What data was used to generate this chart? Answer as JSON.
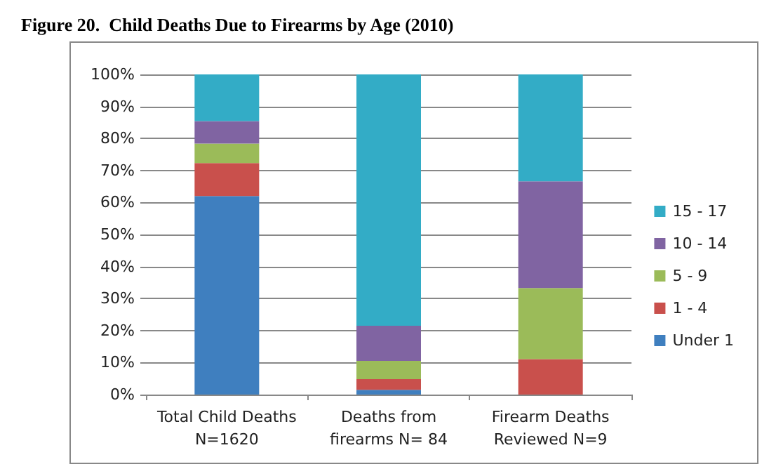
{
  "chart_data": {
    "type": "bar",
    "title": "Figure 20.  Child Deaths Due to Firearms by Age (2010)",
    "stacked": true,
    "categories": [
      "Total Child Deaths\nN=1620",
      "Deaths from\nfirearms N= 84",
      "Firearm Deaths\nReviewed N=9"
    ],
    "series": [
      {
        "name": "Under 1",
        "color": "#3f7fbf",
        "values": [
          62,
          1.5,
          0
        ]
      },
      {
        "name": "1 - 4",
        "color": "#c9504c",
        "values": [
          10.3,
          3.3,
          11.1
        ]
      },
      {
        "name": "5 - 9",
        "color": "#9bbb59",
        "values": [
          6.1,
          5.7,
          22.2
        ]
      },
      {
        "name": "10 - 14",
        "color": "#8064a2",
        "values": [
          7,
          11,
          33.3
        ]
      },
      {
        "name": "15 - 17",
        "color": "#33acc6",
        "values": [
          14.6,
          78.5,
          33.4
        ]
      }
    ],
    "ylim": [
      0,
      100
    ],
    "yticks": [
      {
        "value": 0,
        "label": "0%"
      },
      {
        "value": 10,
        "label": "10%"
      },
      {
        "value": 20,
        "label": "20%"
      },
      {
        "value": 30,
        "label": "30%"
      },
      {
        "value": 40,
        "label": "40%"
      },
      {
        "value": 50,
        "label": "50%"
      },
      {
        "value": 60,
        "label": "60%"
      },
      {
        "value": 70,
        "label": "70%"
      },
      {
        "value": 80,
        "label": "80%"
      },
      {
        "value": 90,
        "label": "90%"
      },
      {
        "value": 100,
        "label": "100%"
      }
    ],
    "grid": "y",
    "legend": "right"
  }
}
